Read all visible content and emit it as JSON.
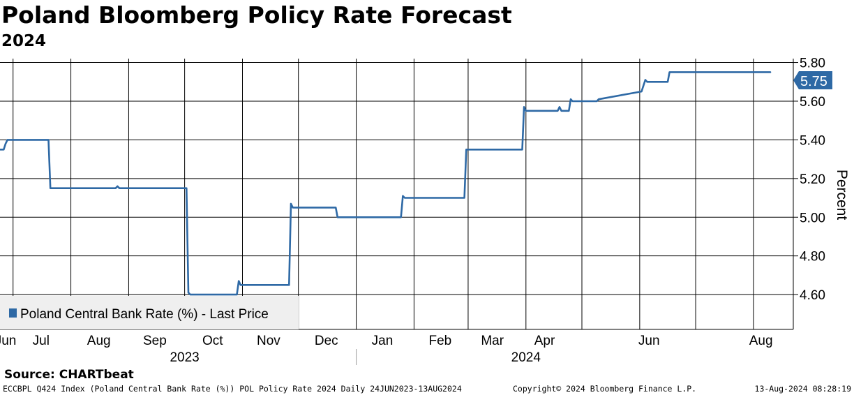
{
  "header": {
    "title": "Poland Bloomberg Policy Rate Forecast",
    "subtitle": "2024"
  },
  "legend": {
    "label": "Poland Central Bank Rate (%)  - Last Price"
  },
  "last_value_label": "5.75",
  "footer": {
    "source": "Source:  CHARTbeat",
    "description": "ECCBPL Q424 Index (Poland Central Bank Rate (%)) POL Policy Rate 2024  Daily 24JUN2023-13AUG2024",
    "copyright": "Copyright© 2024 Bloomberg Finance L.P.",
    "timestamp": "13-Aug-2024 08:28:19"
  },
  "colors": {
    "series": "#2e69a5",
    "grid": "#000000",
    "legend_bg": "#efefef"
  },
  "chart_data": {
    "type": "line",
    "title": "Poland Bloomberg Policy Rate Forecast",
    "subtitle": "2024",
    "ylabel": "Percent",
    "ylim": [
      4.42,
      5.82
    ],
    "y_ticks": [
      4.6,
      4.8,
      5.0,
      5.2,
      5.4,
      5.6,
      5.8
    ],
    "y_tick_labels": [
      "4.60",
      "4.80",
      "5.00",
      "5.20",
      "5.40",
      "5.60",
      "5.80"
    ],
    "y_axis_side": "right",
    "x_range": [
      "2023-06-24",
      "2024-08-13"
    ],
    "x_month_labels": [
      {
        "label": "Jun",
        "date": "2023-06-27"
      },
      {
        "label": "Jul",
        "date": "2023-07-16"
      },
      {
        "label": "Aug",
        "date": "2023-08-16"
      },
      {
        "label": "Sep",
        "date": "2023-09-15"
      },
      {
        "label": "Oct",
        "date": "2023-10-16"
      },
      {
        "label": "Nov",
        "date": "2023-11-15"
      },
      {
        "label": "Dec",
        "date": "2023-12-16"
      },
      {
        "label": "Jan",
        "date": "2024-01-15"
      },
      {
        "label": "Feb",
        "date": "2024-02-15"
      },
      {
        "label": "Mar",
        "date": "2024-03-14"
      },
      {
        "label": "Apr",
        "date": "2024-04-11"
      },
      {
        "label": "Jun",
        "date": "2024-06-06"
      },
      {
        "label": "Aug",
        "date": "2024-08-05"
      }
    ],
    "x_gridlines": [
      "2023-07-01",
      "2023-08-01",
      "2023-09-01",
      "2023-10-01",
      "2023-11-01",
      "2023-12-01",
      "2024-01-01",
      "2024-02-01",
      "2024-03-01",
      "2024-04-01",
      "2024-05-01",
      "2024-06-01",
      "2024-07-01",
      "2024-08-01"
    ],
    "x_year_labels": [
      {
        "label": "2023",
        "date": "2023-10-01"
      },
      {
        "label": "2024",
        "date": "2024-04-01"
      }
    ],
    "x_year_divider": "2024-01-01",
    "grid": true,
    "legend_position": "bottom-left",
    "series": [
      {
        "name": "Poland Central Bank Rate (%)  - Last Price",
        "x": [
          "2023-06-24",
          "2023-06-26",
          "2023-06-27",
          "2023-06-28",
          "2023-07-20",
          "2023-07-21",
          "2023-07-22",
          "2023-08-25",
          "2023-08-26",
          "2023-08-27",
          "2023-10-02",
          "2023-10-03",
          "2023-10-04",
          "2023-10-29",
          "2023-10-30",
          "2023-10-31",
          "2023-11-26",
          "2023-11-27",
          "2023-11-28",
          "2023-12-21",
          "2023-12-22",
          "2024-01-25",
          "2024-01-26",
          "2024-01-27",
          "2024-02-28",
          "2024-02-29",
          "2024-03-30",
          "2024-03-31",
          "2024-04-01",
          "2024-04-18",
          "2024-04-19",
          "2024-04-20",
          "2024-04-24",
          "2024-04-25",
          "2024-04-26",
          "2024-05-09",
          "2024-05-10",
          "2024-06-02",
          "2024-06-04",
          "2024-06-05",
          "2024-06-16",
          "2024-06-17",
          "2024-08-10"
        ],
        "values": [
          5.35,
          5.35,
          5.38,
          5.4,
          5.4,
          5.15,
          5.15,
          5.15,
          5.16,
          5.15,
          5.15,
          4.61,
          4.6,
          4.6,
          4.67,
          4.65,
          4.65,
          5.07,
          5.05,
          5.05,
          5.0,
          5.0,
          5.11,
          5.1,
          5.1,
          5.35,
          5.35,
          5.57,
          5.55,
          5.55,
          5.57,
          5.55,
          5.55,
          5.61,
          5.6,
          5.6,
          5.61,
          5.65,
          5.71,
          5.7,
          5.7,
          5.75,
          5.75
        ]
      }
    ]
  }
}
